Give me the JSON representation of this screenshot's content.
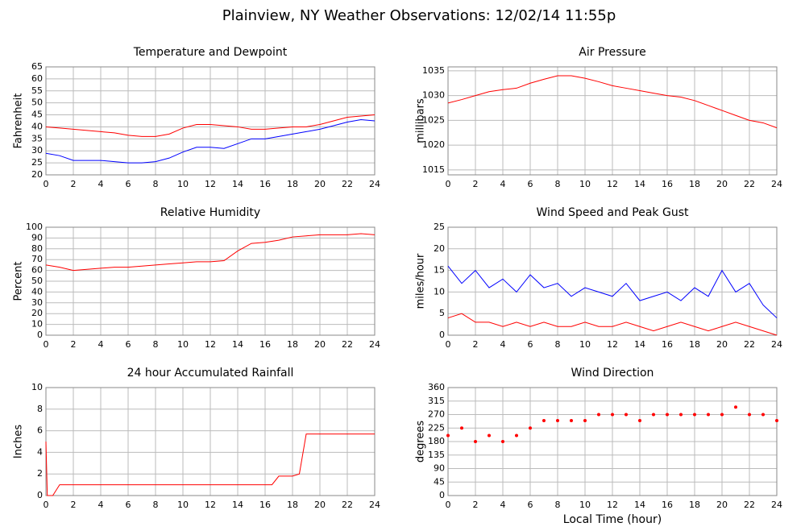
{
  "title": "Plainview, NY Weather Observations: 12/02/14 11:55p",
  "xlabel": "Local Time (hour)",
  "chart_data": [
    {
      "type": "line",
      "title": "Temperature and Dewpoint",
      "ylabel": "Fahrenheit",
      "x": [
        0,
        1,
        2,
        3,
        4,
        5,
        6,
        7,
        8,
        9,
        10,
        11,
        12,
        13,
        14,
        15,
        16,
        17,
        18,
        19,
        20,
        21,
        22,
        23,
        24
      ],
      "series": [
        {
          "color": "#ff0000",
          "values": [
            40,
            39.5,
            39,
            38.5,
            38,
            37.5,
            36.5,
            36,
            36,
            37,
            39.5,
            41,
            41,
            40.5,
            40,
            39,
            39,
            39.5,
            40,
            40,
            41,
            42.5,
            44,
            44.5,
            45
          ]
        },
        {
          "color": "#0000ff",
          "values": [
            29,
            28,
            26,
            26,
            26,
            25.5,
            25,
            25,
            25.5,
            27,
            29.5,
            31.5,
            31.5,
            31,
            33,
            35,
            35,
            36,
            37,
            38,
            39,
            40.5,
            42,
            43,
            42.5
          ]
        }
      ],
      "xlim": [
        0,
        24
      ],
      "xticks": [
        0,
        2,
        4,
        6,
        8,
        10,
        12,
        14,
        16,
        18,
        20,
        22,
        24
      ],
      "ylim": [
        20,
        65
      ],
      "yticks": [
        20,
        25,
        30,
        35,
        40,
        45,
        50,
        55,
        60,
        65
      ],
      "grid": true
    },
    {
      "type": "line",
      "title": "Air Pressure",
      "ylabel": "millibars",
      "x": [
        0,
        1,
        2,
        3,
        4,
        5,
        6,
        7,
        8,
        9,
        10,
        11,
        12,
        13,
        14,
        15,
        16,
        17,
        18,
        19,
        20,
        21,
        22,
        23,
        24
      ],
      "series": [
        {
          "color": "#ff0000",
          "values": [
            1028.5,
            1029.2,
            1030,
            1030.8,
            1031.2,
            1031.5,
            1032.5,
            1033.3,
            1034,
            1034,
            1033.5,
            1032.8,
            1032,
            1031.5,
            1031,
            1030.5,
            1030,
            1029.7,
            1029,
            1028,
            1027,
            1026,
            1025,
            1024.5,
            1023.5
          ]
        }
      ],
      "xlim": [
        0,
        24
      ],
      "xticks": [
        0,
        2,
        4,
        6,
        8,
        10,
        12,
        14,
        16,
        18,
        20,
        22,
        24
      ],
      "ylim": [
        1014,
        1035.8
      ],
      "yticks": [
        1015,
        1020,
        1025,
        1030,
        1035
      ],
      "grid": true
    },
    {
      "type": "line",
      "title": "Relative Humidity",
      "ylabel": "Percent",
      "x": [
        0,
        1,
        2,
        3,
        4,
        5,
        6,
        7,
        8,
        9,
        10,
        11,
        12,
        13,
        14,
        15,
        16,
        17,
        18,
        19,
        20,
        21,
        22,
        23,
        24
      ],
      "series": [
        {
          "color": "#ff0000",
          "values": [
            65,
            63,
            60,
            61,
            62,
            63,
            63,
            64,
            65,
            66,
            67,
            68,
            68,
            69,
            78,
            85,
            86,
            88,
            91,
            92,
            93,
            93,
            93,
            94,
            93
          ]
        }
      ],
      "xlim": [
        0,
        24
      ],
      "xticks": [
        0,
        2,
        4,
        6,
        8,
        10,
        12,
        14,
        16,
        18,
        20,
        22,
        24
      ],
      "ylim": [
        0,
        100
      ],
      "yticks": [
        0,
        10,
        20,
        30,
        40,
        50,
        60,
        70,
        80,
        90,
        100
      ],
      "grid": true
    },
    {
      "type": "line",
      "title": "Wind Speed and Peak Gust",
      "ylabel": "miles/hour",
      "x": [
        0,
        1,
        2,
        3,
        4,
        5,
        6,
        7,
        8,
        9,
        10,
        11,
        12,
        13,
        14,
        15,
        16,
        17,
        18,
        19,
        20,
        21,
        22,
        23,
        24
      ],
      "series": [
        {
          "color": "#0000ff",
          "values": [
            16,
            12,
            15,
            11,
            13,
            10,
            14,
            11,
            12,
            9,
            11,
            10,
            9,
            12,
            8,
            9,
            10,
            8,
            11,
            9,
            15,
            10,
            12,
            7,
            4
          ]
        },
        {
          "color": "#ff0000",
          "values": [
            4,
            5,
            3,
            3,
            2,
            3,
            2,
            3,
            2,
            2,
            3,
            2,
            2,
            3,
            2,
            1,
            2,
            3,
            2,
            1,
            2,
            3,
            2,
            1,
            0
          ]
        }
      ],
      "xlim": [
        0,
        24
      ],
      "xticks": [
        0,
        2,
        4,
        6,
        8,
        10,
        12,
        14,
        16,
        18,
        20,
        22,
        24
      ],
      "ylim": [
        0,
        25
      ],
      "yticks": [
        0,
        5,
        10,
        15,
        20,
        25
      ],
      "grid": true
    },
    {
      "type": "line",
      "title": "24 hour Accumulated Rainfall",
      "ylabel": "Inches",
      "x": [
        0,
        0.1,
        0.5,
        1,
        2,
        4,
        6,
        8,
        10,
        12,
        14,
        16,
        16.5,
        17,
        18,
        18.5,
        19,
        20,
        22,
        24
      ],
      "series": [
        {
          "color": "#ff0000",
          "values": [
            5,
            0,
            0,
            1,
            1,
            1,
            1,
            1,
            1,
            1,
            1,
            1,
            1,
            1.8,
            1.8,
            2,
            5.7,
            5.7,
            5.7,
            5.7
          ]
        }
      ],
      "xlim": [
        0,
        24
      ],
      "xticks": [
        0,
        2,
        4,
        6,
        8,
        10,
        12,
        14,
        16,
        18,
        20,
        22,
        24
      ],
      "ylim": [
        0,
        10
      ],
      "yticks": [
        0,
        2,
        4,
        6,
        8,
        10
      ],
      "grid": true
    },
    {
      "type": "scatter",
      "title": "Wind Direction",
      "ylabel": "degrees",
      "x": [
        0,
        1,
        2,
        3,
        4,
        5,
        6,
        7,
        8,
        9,
        10,
        11,
        12,
        13,
        14,
        15,
        16,
        17,
        18,
        19,
        20,
        21,
        22,
        23,
        24
      ],
      "series": [
        {
          "color": "#ff0000",
          "values": [
            200,
            225,
            180,
            200,
            180,
            200,
            225,
            250,
            250,
            250,
            250,
            270,
            270,
            270,
            250,
            270,
            270,
            270,
            270,
            270,
            270,
            295,
            270,
            270,
            250
          ]
        }
      ],
      "xlim": [
        0,
        24
      ],
      "xticks": [
        0,
        2,
        4,
        6,
        8,
        10,
        12,
        14,
        16,
        18,
        20,
        22,
        24
      ],
      "ylim": [
        0,
        360
      ],
      "yticks": [
        0,
        45,
        90,
        135,
        180,
        225,
        270,
        315,
        360
      ],
      "grid": true
    }
  ]
}
